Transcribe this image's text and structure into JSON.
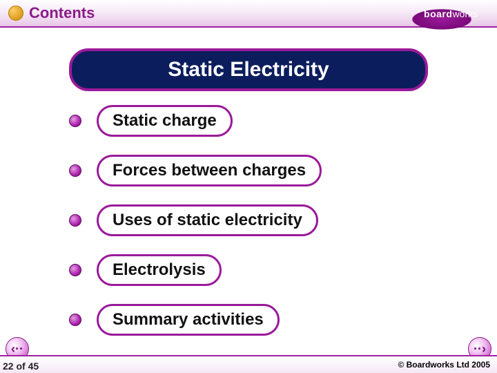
{
  "colors": {
    "purple": "#9a1a9a",
    "navy": "#0c1d5e",
    "header_title": "#8a1a8a",
    "item_text": "#111111"
  },
  "header": {
    "title": "Contents"
  },
  "logo": {
    "text_bold": "board",
    "text_rest": "works"
  },
  "title": "Static Electricity",
  "items": [
    {
      "label": "Static charge"
    },
    {
      "label": "Forces between charges"
    },
    {
      "label": "Uses of static electricity"
    },
    {
      "label": "Electrolysis"
    },
    {
      "label": "Summary activities"
    }
  ],
  "footer": {
    "copyright": "© Boardworks Ltd 2005",
    "page_current": 22,
    "page_total": 45
  },
  "nav": {
    "prev_glyph": "‹··",
    "next_glyph": "··›"
  }
}
